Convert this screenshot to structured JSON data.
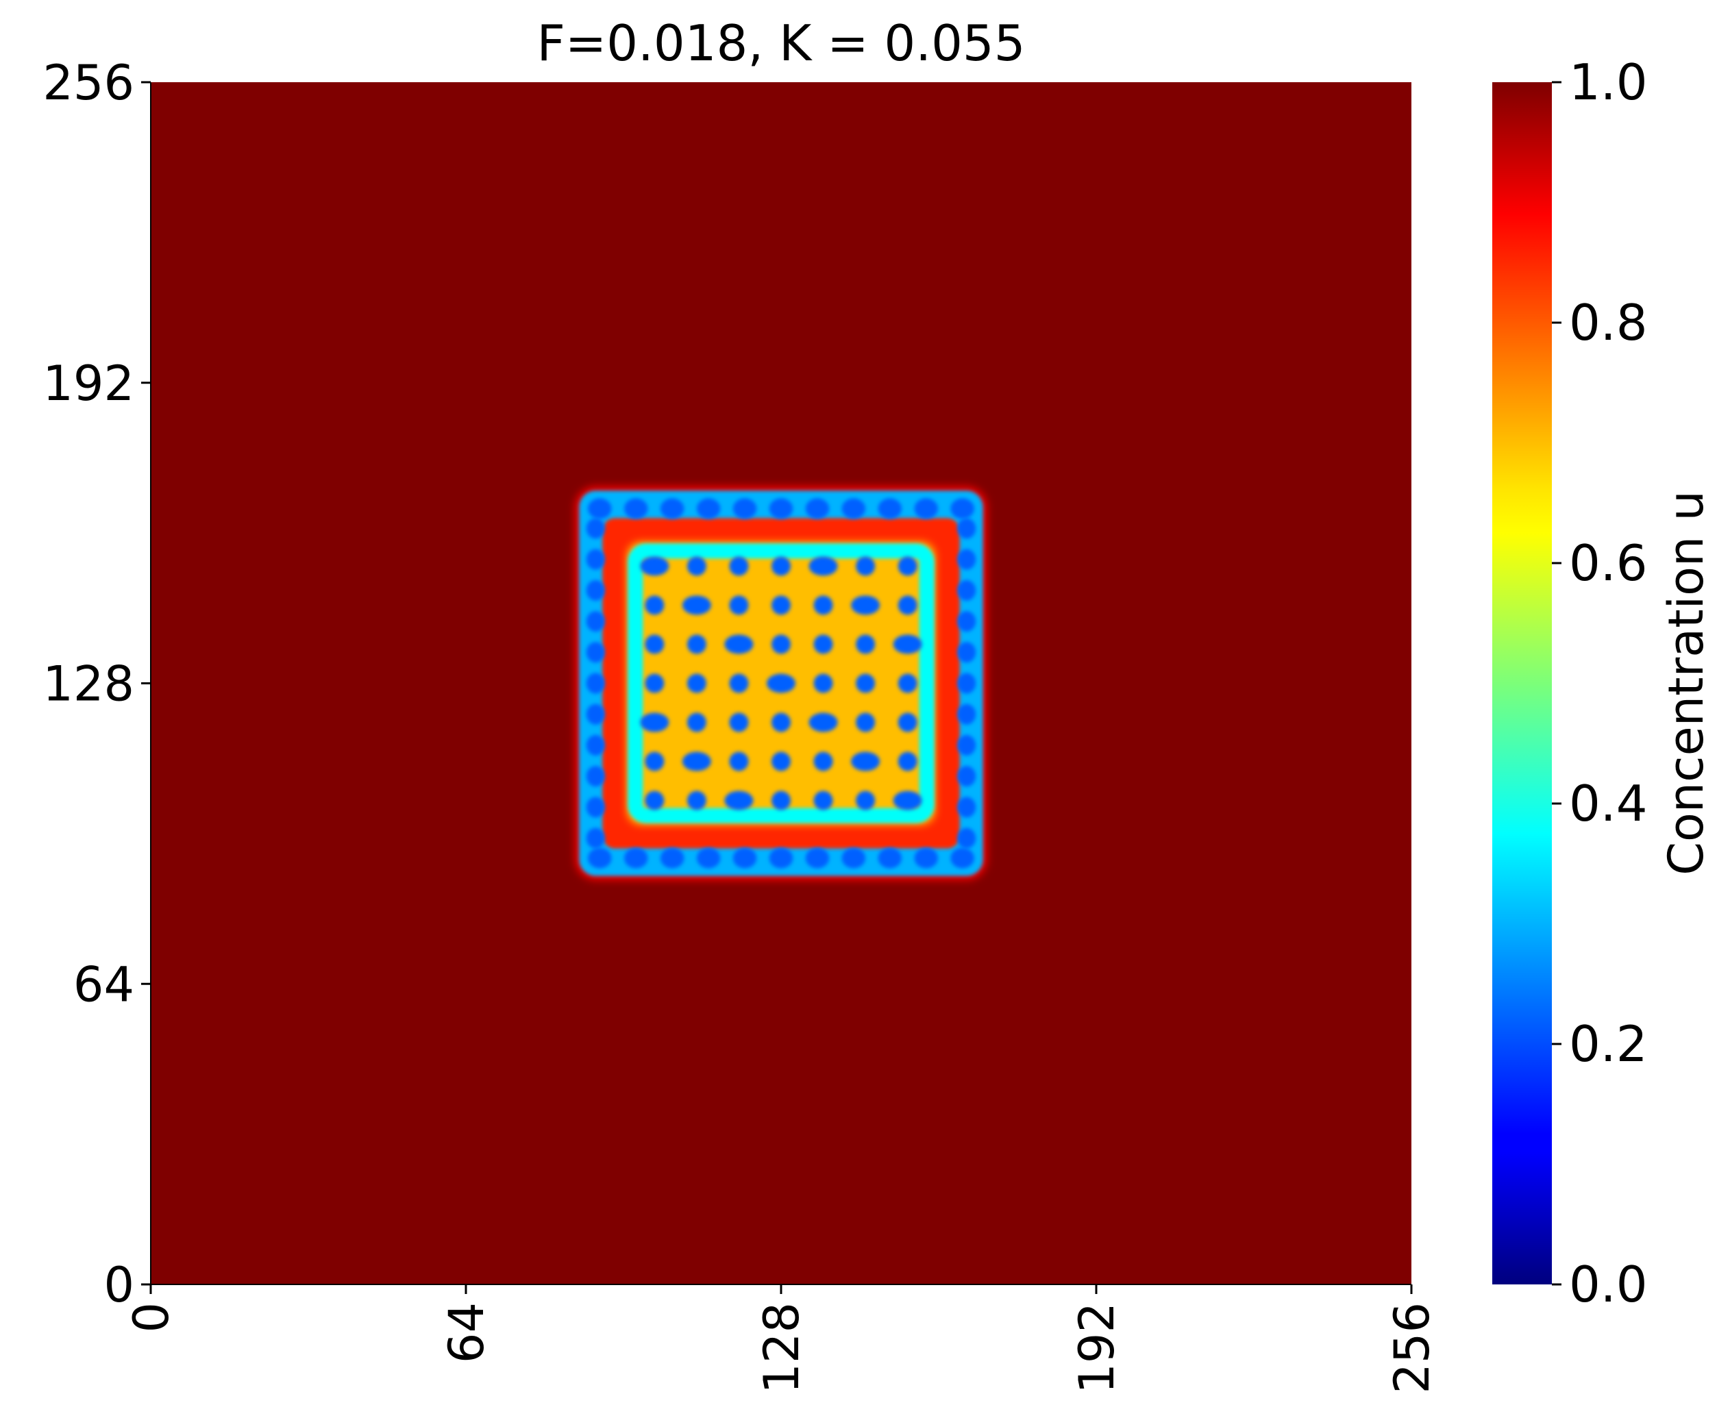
{
  "chart_data": {
    "type": "heatmap",
    "title": "F=0.018, K = 0.055",
    "xlabel": "",
    "ylabel": "",
    "xlim": [
      0,
      256
    ],
    "ylim": [
      0,
      256
    ],
    "x_ticks": [
      "0",
      "64",
      "128",
      "192",
      "256"
    ],
    "y_ticks": [
      "0",
      "64",
      "128",
      "192",
      "256"
    ],
    "grid": false,
    "colormap": "jet",
    "background_value": 1.0,
    "colorbar": {
      "label": "Concentration u",
      "range": [
        0.0,
        1.0
      ],
      "ticks": [
        "0.0",
        "0.2",
        "0.4",
        "0.6",
        "0.8",
        "1.0"
      ]
    },
    "pattern": {
      "description_values": {
        "region_x": [
          87,
          169
        ],
        "region_y": [
          87,
          169
        ],
        "outer_ring_u": 0.3,
        "inner_u": 0.7,
        "gap_u": 0.85,
        "spot_u": 0.22
      }
    }
  }
}
